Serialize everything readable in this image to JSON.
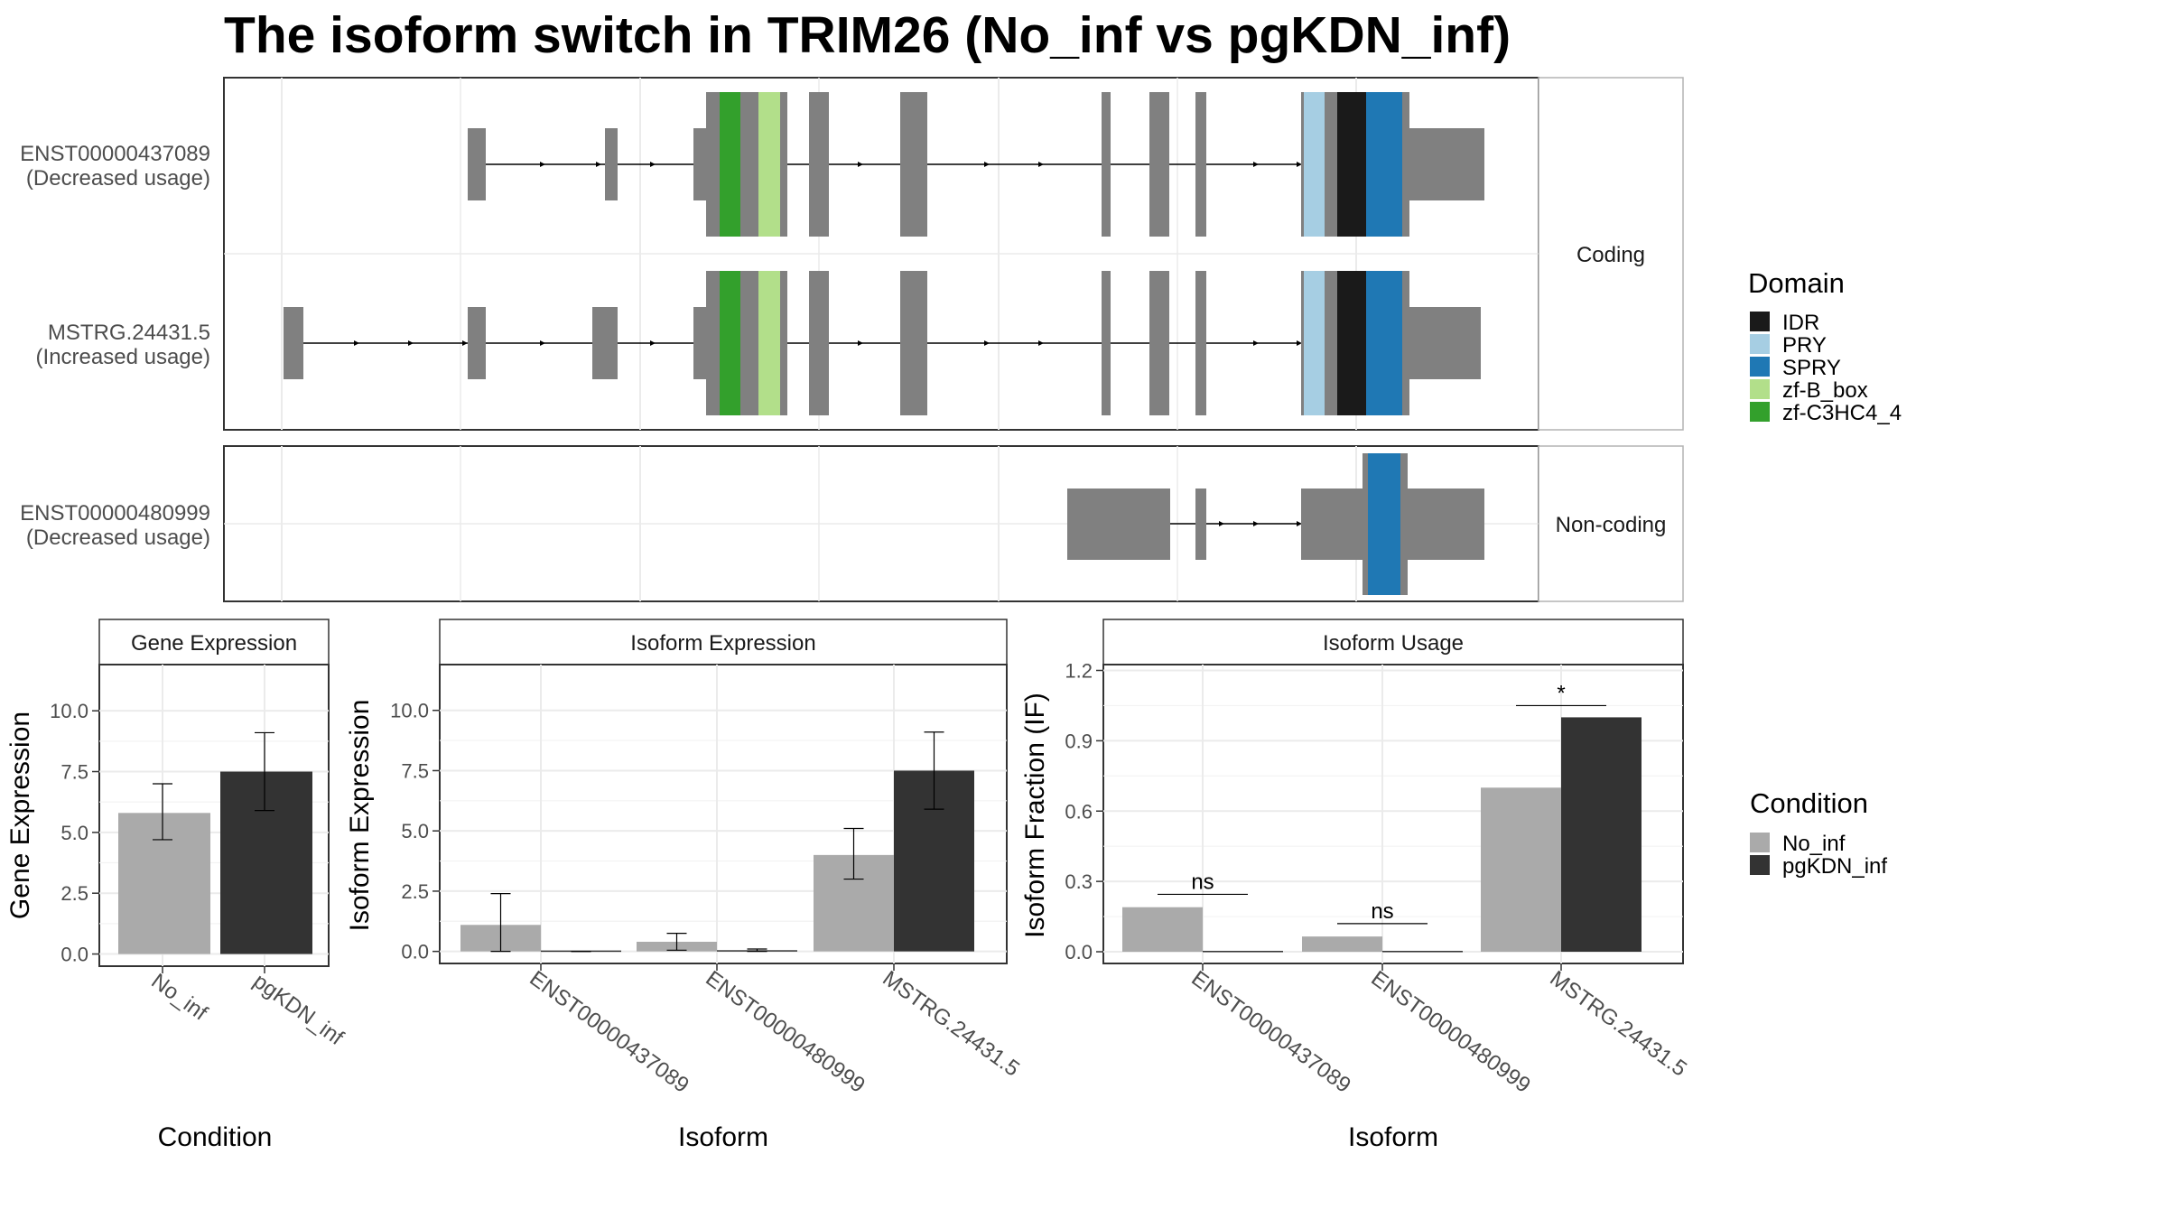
{
  "title": "The isoform switch in TRIM26 (No_inf vs pgKDN_inf)",
  "colors": {
    "exon": "#808080",
    "IDR": "#1a1a1a",
    "PRY": "#a6cee3",
    "SPRY": "#1f78b4",
    "zf-B_box": "#b2df8a",
    "zf-C3HC4_4": "#33a02c",
    "No_inf": "#aaaaaa",
    "pgKDN_inf": "#333333"
  },
  "transcripts": {
    "t1": {
      "name": "ENST00000437089",
      "usage": "(Decreased usage)"
    },
    "t2": {
      "name": "MSTRG.24431.5",
      "usage": "(Increased usage)"
    },
    "t3": {
      "name": "ENST00000480999",
      "usage": "(Decreased usage)"
    }
  },
  "strips": {
    "coding": "Coding",
    "noncoding": "Non-coding"
  },
  "domain_legend": {
    "title": "Domain",
    "items": [
      "IDR",
      "PRY",
      "SPRY",
      "zf-B_box",
      "zf-C3HC4_4"
    ]
  },
  "condition_legend": {
    "title": "Condition",
    "items": [
      "No_inf",
      "pgKDN_inf"
    ]
  },
  "chart_data": [
    {
      "type": "bar",
      "title": "Gene Expression",
      "xlabel": "Condition",
      "ylabel": "Gene Expression",
      "categories": [
        "No_inf",
        "pgKDN_inf"
      ],
      "values": [
        5.8,
        7.5
      ],
      "error_low": [
        4.7,
        5.9
      ],
      "error_high": [
        7.0,
        9.1
      ],
      "ylim": [
        -0.5,
        11.9
      ],
      "yticks": [
        "0.0",
        "2.5",
        "5.0",
        "7.5",
        "10.0"
      ]
    },
    {
      "type": "bar",
      "title": "Isoform Expression",
      "xlabel": "Isoform",
      "ylabel": "Isoform Expression",
      "categories": [
        "ENST00000437089",
        "ENST00000480999",
        "MSTRG.24431.5"
      ],
      "series": [
        {
          "name": "No_inf",
          "values": [
            1.1,
            0.4,
            4.0
          ],
          "error_low": [
            0.0,
            0.05,
            3.0
          ],
          "error_high": [
            2.4,
            0.75,
            5.1
          ]
        },
        {
          "name": "pgKDN_inf",
          "values": [
            0.0,
            0.05,
            7.5
          ],
          "error_low": [
            0.0,
            0.0,
            5.9
          ],
          "error_high": [
            0.0,
            0.1,
            9.1
          ]
        }
      ],
      "ylim": [
        -0.5,
        11.9
      ],
      "yticks": [
        "0.0",
        "2.5",
        "5.0",
        "7.5",
        "10.0"
      ]
    },
    {
      "type": "bar",
      "title": "Isoform Usage",
      "xlabel": "Isoform",
      "ylabel": "Isoform Fraction (IF)",
      "categories": [
        "ENST00000437089",
        "ENST00000480999",
        "MSTRG.24431.5"
      ],
      "series": [
        {
          "name": "No_inf",
          "values": [
            0.19,
            0.065,
            0.7
          ]
        },
        {
          "name": "pgKDN_inf",
          "values": [
            0.0,
            0.003,
            1.0
          ]
        }
      ],
      "significance": [
        {
          "label": "ns",
          "y": 0.245
        },
        {
          "label": "ns",
          "y": 0.12
        },
        {
          "label": "*",
          "y": 1.05
        }
      ],
      "ylim": [
        -0.05,
        1.225
      ],
      "yticks": [
        "0.0",
        "0.3",
        "0.6",
        "0.9",
        "1.2"
      ]
    }
  ]
}
